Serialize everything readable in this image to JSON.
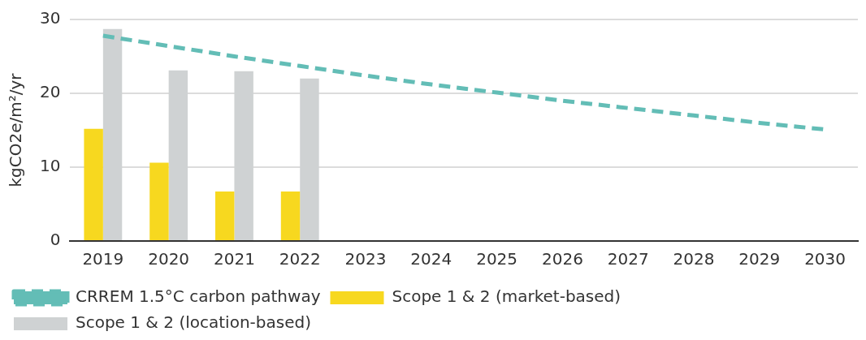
{
  "chart_data": {
    "type": "bar",
    "ylabel": "kgCO2e/m²/yr",
    "categories": [
      "2019",
      "2020",
      "2021",
      "2022",
      "2023",
      "2024",
      "2025",
      "2026",
      "2027",
      "2028",
      "2029",
      "2030"
    ],
    "series": [
      {
        "name": "Scope 1 & 2 (market-based)",
        "color": "#f7d81f",
        "values": [
          15.2,
          10.6,
          6.7,
          6.7,
          null,
          null,
          null,
          null,
          null,
          null,
          null,
          null
        ]
      },
      {
        "name": "Scope 1 & 2 (location-based)",
        "color": "#cfd2d3",
        "values": [
          28.7,
          23.1,
          23.0,
          22.0,
          null,
          null,
          null,
          null,
          null,
          null,
          null,
          null
        ]
      },
      {
        "name": "CRREM 1.5°C carbon pathway",
        "type": "line",
        "color": "#63bdb6",
        "line_style": "dashed",
        "marker": "none",
        "values": [
          27.8,
          26.4,
          25.0,
          23.7,
          22.4,
          21.2,
          20.1,
          19.0,
          18.0,
          17.0,
          16.0,
          15.1
        ]
      }
    ],
    "ylim": [
      0,
      30
    ],
    "yticks": [
      0,
      10,
      20,
      30
    ],
    "grid": "y",
    "legend": "bottom"
  }
}
